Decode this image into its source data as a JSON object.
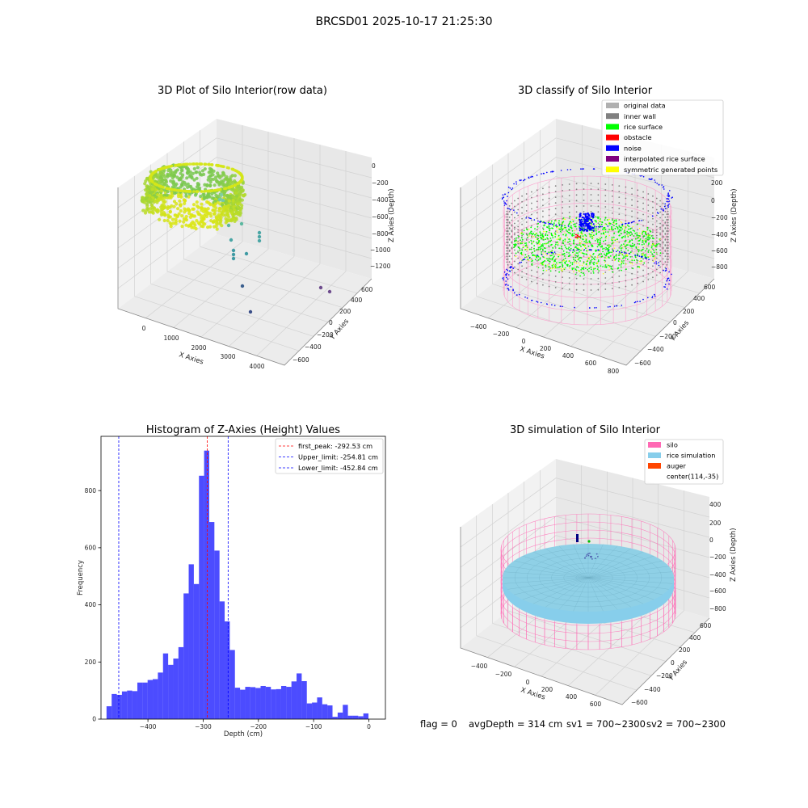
{
  "suptitle": "BRCSD01 2025-10-17 21:25:30",
  "status": {
    "flag": "flag = 0",
    "avg": "avgDepth = 314 cm",
    "sv1": "sv1 = 700~2300",
    "sv2": "sv2 = 700~2300"
  },
  "colors": {
    "silo": "#ff69b4",
    "rice_sim": "#87ceeb",
    "hist_bar": "#0000ff",
    "peak_line": "#ff0000",
    "limit_line": "#0000ff",
    "original": "#b0b0b0",
    "inner_wall": "#808080",
    "rice_surface": "#00ff00",
    "obstacle": "#ff0000",
    "noise": "#0000ff",
    "interp": "#800080",
    "symmetric": "#ffff00",
    "auger": "#ff4500"
  },
  "chart_data": [
    {
      "type": "scatter",
      "projection": "3d",
      "title": "3D Plot of Silo Interior(row data)",
      "xlabel": "X Axies",
      "ylabel": "Y Axies",
      "zlabel": "Z Axies (Depth)",
      "x_ticks": [
        "0",
        "1000",
        "2000",
        "3000",
        "4000"
      ],
      "y_ticks": [
        "600",
        "400",
        "200",
        "0",
        "−200",
        "−400",
        "−600"
      ],
      "z_ticks": [
        "0",
        "−200",
        "−400",
        "−600",
        "−800",
        "−1000",
        "−1200"
      ],
      "xlim": [
        -300,
        4300
      ],
      "ylim": [
        -700,
        700
      ],
      "zlim": [
        -1300,
        100
      ],
      "colormap": "viridis"
    },
    {
      "type": "scatter",
      "projection": "3d",
      "title": "3D classify of Silo Interior",
      "xlabel": "X Axies",
      "ylabel": "Y Axies",
      "zlabel": "Z Axies (Depth)",
      "x_ticks": [
        "−400",
        "−200",
        "0",
        "200",
        "400",
        "600",
        "800"
      ],
      "y_ticks": [
        "600",
        "400",
        "200",
        "0",
        "−200",
        "−400",
        "−600"
      ],
      "z_ticks": [
        "200",
        "0",
        "−200",
        "−400",
        "−600",
        "−800"
      ],
      "legend_position": "top-right",
      "legend": [
        {
          "name": "original data",
          "color": "#b0b0b0"
        },
        {
          "name": "inner wall",
          "color": "#808080"
        },
        {
          "name": "rice surface",
          "color": "#00ff00"
        },
        {
          "name": "obstacle",
          "color": "#ff0000"
        },
        {
          "name": "noise",
          "color": "#0000ff"
        },
        {
          "name": "interpolated rice surface",
          "color": "#800080"
        },
        {
          "name": "symmetric generated points",
          "color": "#ffff00"
        }
      ]
    },
    {
      "type": "bar",
      "subtype": "histogram",
      "title": "Histogram of Z-Axies (Height) Values",
      "xlabel": "Depth (cm)",
      "ylabel": "Frequency",
      "xlim": [
        -485,
        30
      ],
      "ylim": [
        0,
        990
      ],
      "x_ticks": [
        -400,
        -300,
        -200,
        -100,
        0
      ],
      "x_tick_labels": [
        "−400",
        "−300",
        "−200",
        "−100",
        "0"
      ],
      "y_ticks": [
        0,
        200,
        400,
        600,
        800
      ],
      "bin_start": -475,
      "bin_width": 9.3,
      "values": [
        45,
        88,
        85,
        97,
        100,
        98,
        128,
        128,
        137,
        140,
        163,
        230,
        190,
        212,
        252,
        440,
        542,
        473,
        852,
        940,
        690,
        590,
        412,
        342,
        242,
        110,
        103,
        113,
        112,
        109,
        116,
        113,
        104,
        105,
        116,
        113,
        132,
        160,
        133,
        55,
        58,
        76,
        52,
        48,
        8,
        23,
        50,
        12,
        12,
        10,
        20
      ],
      "lines": [
        {
          "label": "first_peak: -292.53 cm",
          "x": -292.53,
          "color": "#ff0000"
        },
        {
          "label": "Upper_limit: -254.81 cm",
          "x": -254.81,
          "color": "#0000ff"
        },
        {
          "label": "Lower_limit: -452.84 cm",
          "x": -452.84,
          "color": "#0000ff"
        }
      ],
      "legend_position": "top-right"
    },
    {
      "type": "scatter",
      "projection": "3d",
      "title": "3D simulation of Silo Interior",
      "xlabel": "X Axies",
      "ylabel": "Y Axies",
      "zlabel": "Z Axies (Depth)",
      "x_ticks": [
        "−400",
        "−200",
        "0",
        "200",
        "400",
        "600"
      ],
      "y_ticks": [
        "600",
        "400",
        "200",
        "0",
        "−200",
        "−400",
        "−600"
      ],
      "z_ticks": [
        "400",
        "200",
        "0",
        "−200",
        "−400",
        "−600",
        "−800"
      ],
      "legend_position": "top-right",
      "legend": [
        {
          "name": "silo",
          "color": "#ff69b4"
        },
        {
          "name": "rice simulation",
          "color": "#87ceeb"
        },
        {
          "name": "auger",
          "color": "#ff4500"
        },
        {
          "name": "center(114,-35)",
          "color": ""
        }
      ]
    }
  ]
}
